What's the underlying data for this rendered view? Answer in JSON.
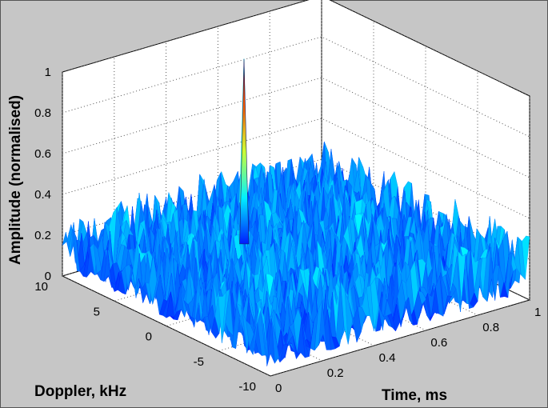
{
  "chart_data": {
    "type": "surface3d",
    "title": "",
    "xlabel": "Time, ms",
    "ylabel": "Doppler, kHz",
    "zlabel": "Amplitude (normalised)",
    "x_ticks": [
      "0",
      "0.2",
      "0.4",
      "0.6",
      "0.8",
      "1"
    ],
    "y_ticks": [
      "-10",
      "-5",
      "0",
      "5",
      "10"
    ],
    "z_ticks": [
      "0",
      "0.2",
      "0.4",
      "0.6",
      "0.8",
      "1"
    ],
    "xlim": [
      0,
      1
    ],
    "ylim": [
      -10,
      10
    ],
    "zlim": [
      0,
      1
    ],
    "grid": true,
    "colormap": "jet",
    "background_color": "#c6c6c6",
    "peak": {
      "time_ms": 0.5,
      "doppler_khz": 5,
      "amplitude": 1.0
    },
    "noise_floor_amplitude_range": [
      0.0,
      0.35
    ]
  }
}
